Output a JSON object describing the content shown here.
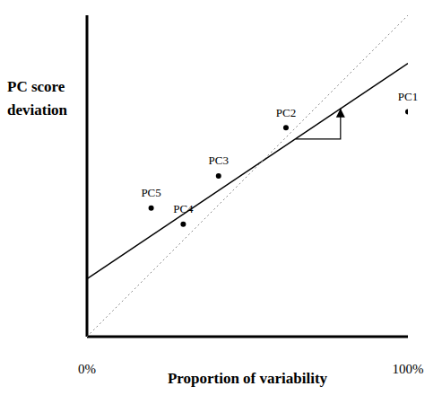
{
  "chart_data": {
    "type": "scatter",
    "x_label": "Proportion of variability",
    "y_label": "PC score deviation",
    "x": [
      100,
      62,
      41,
      30,
      20
    ],
    "values": [
      70,
      65,
      50,
      35,
      40
    ],
    "labels": [
      "PC1",
      "PC2",
      "PC3",
      "PC4",
      "PC5"
    ],
    "color": "#000000",
    "marker": "circle",
    "lines": [
      {
        "x": [
          0,
          100
        ],
        "y": [
          18,
          85
        ],
        "line_style": "solid",
        "color": "#000000"
      },
      {
        "x": [
          0,
          100
        ],
        "y": [
          0,
          100
        ],
        "line_style": "dotted",
        "color": "#888888"
      }
    ],
    "arrow": {
      "x": [
        65,
        79,
        79
      ],
      "y": [
        61.5,
        61.5,
        71
      ],
      "color": "#000000"
    },
    "xlim": [
      0,
      100
    ],
    "ylim": [
      0,
      100
    ],
    "xticks": [
      {
        "value": 0,
        "label": "0%"
      },
      {
        "value": 100,
        "label": "100%"
      }
    ],
    "yticks": [],
    "tick_labels": "x",
    "grid": false
  }
}
